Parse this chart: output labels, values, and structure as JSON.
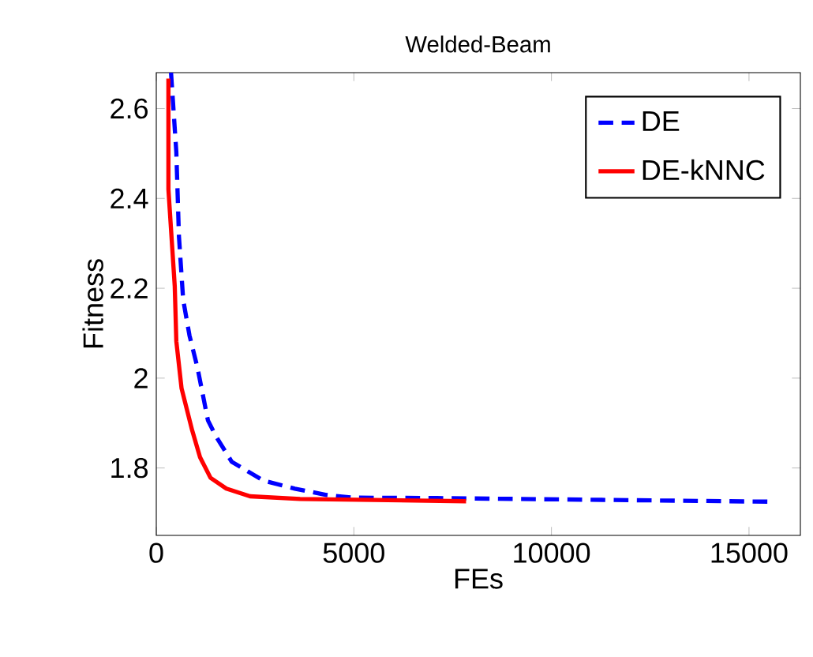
{
  "chart_data": {
    "type": "line",
    "title": "Welded-Beam",
    "xlabel": "FEs",
    "ylabel": "Fitness",
    "xlim": [
      0,
      16300
    ],
    "ylim": [
      1.65,
      2.68
    ],
    "xticks": [
      0,
      5000,
      10000,
      15000
    ],
    "yticks": [
      1.8,
      2,
      2.2,
      2.4,
      2.6
    ],
    "legend": "top right",
    "grid": false,
    "series": [
      {
        "name": "DE",
        "color": "#0000ff",
        "line_style": "dashed",
        "x": [
          373,
          507,
          573,
          680,
          840,
          1040,
          1307,
          1507,
          1907,
          2707,
          3507,
          4307,
          4960,
          7107,
          15507
        ],
        "values": [
          2.68,
          2.503,
          2.316,
          2.175,
          2.095,
          2.024,
          1.906,
          1.871,
          1.814,
          1.772,
          1.754,
          1.74,
          1.734,
          1.733,
          1.725
        ]
      },
      {
        "name": "DE-kNNC",
        "color": "#ff0000",
        "line_style": "solid",
        "x": [
          307,
          307,
          467,
          507,
          640,
          907,
          1107,
          1373,
          1773,
          2373,
          3640,
          7840
        ],
        "values": [
          2.667,
          2.42,
          2.205,
          2.082,
          1.977,
          1.884,
          1.824,
          1.778,
          1.754,
          1.737,
          1.731,
          1.726
        ]
      }
    ]
  }
}
